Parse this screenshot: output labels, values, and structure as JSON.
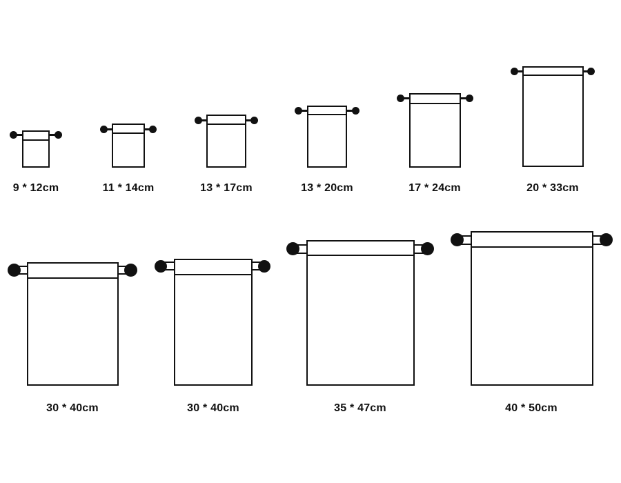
{
  "bags": [
    {
      "label": "9 * 12cm"
    },
    {
      "label": "11 * 14cm"
    },
    {
      "label": "13 * 17cm"
    },
    {
      "label": "13 * 20cm"
    },
    {
      "label": "17 * 24cm"
    },
    {
      "label": "20 * 33cm"
    },
    {
      "label": "30 * 40cm"
    },
    {
      "label": "30 * 40cm"
    },
    {
      "label": "35 * 47cm"
    },
    {
      "label": "40 * 50cm"
    }
  ]
}
